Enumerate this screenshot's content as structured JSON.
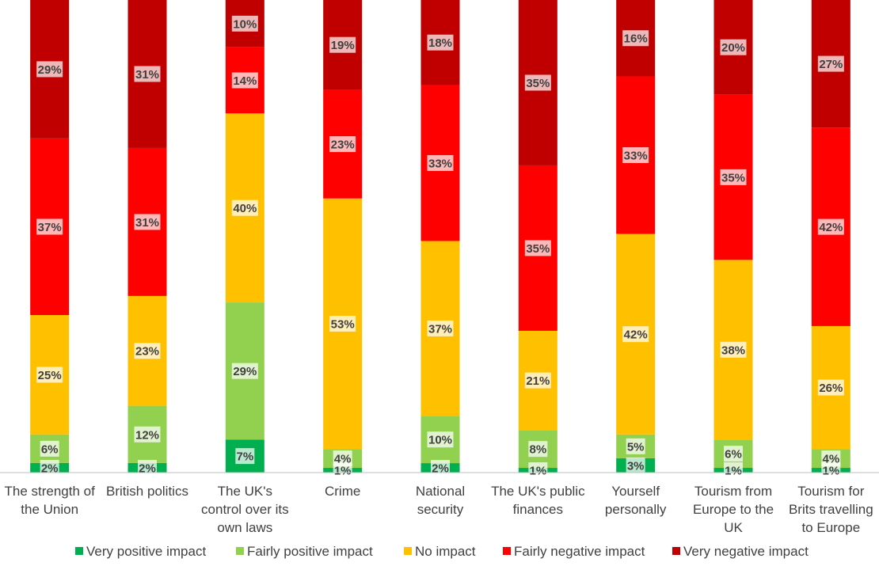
{
  "chart_data": {
    "type": "bar",
    "stacked": true,
    "categories": [
      [
        "The strength of",
        "the Union"
      ],
      [
        "British politics"
      ],
      [
        "The UK's",
        "control over its",
        "own laws"
      ],
      [
        "Crime"
      ],
      [
        "National",
        "security"
      ],
      [
        "The UK's public",
        "finances"
      ],
      [
        "Yourself",
        "personally"
      ],
      [
        "Tourism from",
        "Europe to the",
        "UK"
      ],
      [
        "Tourism for",
        "Brits travelling",
        "to Europe"
      ]
    ],
    "series": [
      {
        "name": "Very positive impact",
        "color": "#00B050",
        "values": [
          2,
          2,
          7,
          1,
          2,
          1,
          3,
          1,
          1
        ]
      },
      {
        "name": "Fairly positive impact",
        "color": "#92D050",
        "values": [
          6,
          12,
          29,
          4,
          10,
          8,
          5,
          6,
          4
        ]
      },
      {
        "name": "No impact",
        "color": "#FFC000",
        "values": [
          25,
          23,
          40,
          53,
          37,
          21,
          42,
          38,
          26
        ]
      },
      {
        "name": "Fairly negative impact",
        "color": "#FF0000",
        "values": [
          37,
          31,
          14,
          23,
          33,
          35,
          33,
          35,
          42
        ]
      },
      {
        "name": "Very negative impact",
        "color": "#C00000",
        "values": [
          29,
          31,
          10,
          19,
          18,
          35,
          16,
          20,
          27
        ]
      }
    ],
    "value_suffix": "%",
    "legend_position": "bottom",
    "grid": false
  }
}
